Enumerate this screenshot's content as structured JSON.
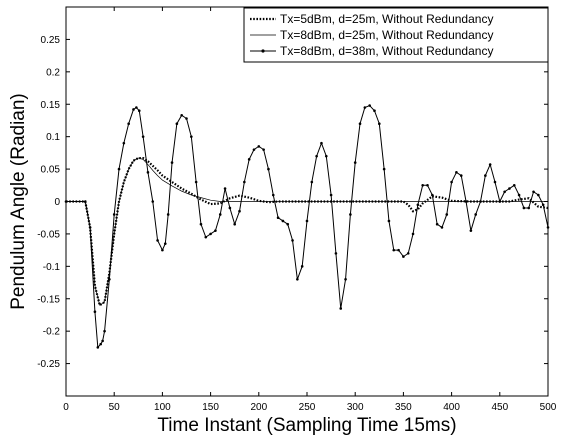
{
  "chart_data": {
    "type": "line",
    "title": "",
    "xlabel": "Time Instant (Sampling Time 15ms)",
    "ylabel": "Pendulum Angle (Radian)",
    "xlim": [
      0,
      500
    ],
    "ylim": [
      -0.3,
      0.3
    ],
    "xticks": [
      0,
      50,
      100,
      150,
      200,
      250,
      300,
      350,
      400,
      450,
      500
    ],
    "yticks": [
      -0.25,
      -0.2,
      -0.15,
      -0.1,
      -0.05,
      0,
      0.05,
      0.1,
      0.15,
      0.2,
      0.25
    ],
    "xtick_labels": [
      "0",
      "50",
      "100",
      "150",
      "200",
      "250",
      "300",
      "350",
      "400",
      "450",
      "500"
    ],
    "ytick_labels": [
      "-0.25",
      "-0.2",
      "-0.15",
      "-0.1",
      "-0.05",
      "0",
      "0.05",
      "0.1",
      "0.15",
      "0.2",
      "0.25"
    ],
    "grid": false,
    "legend_position": "top-right",
    "series": [
      {
        "name": "Tx=5dBm, d=25m, Without Redundancy",
        "style": "dotted-thick",
        "x": [
          0,
          20,
          25,
          30,
          35,
          40,
          45,
          50,
          55,
          60,
          65,
          70,
          75,
          80,
          85,
          90,
          95,
          100,
          110,
          120,
          130,
          140,
          150,
          160,
          170,
          180,
          190,
          200,
          210,
          220,
          230,
          240,
          250,
          260,
          270,
          280,
          290,
          300,
          310,
          320,
          330,
          340,
          350,
          355,
          360,
          365,
          370,
          380,
          390,
          400,
          420,
          440,
          460,
          470,
          480,
          490,
          500
        ],
        "y": [
          0,
          0,
          -0.04,
          -0.13,
          -0.16,
          -0.155,
          -0.11,
          -0.05,
          0.0,
          0.03,
          0.05,
          0.063,
          0.067,
          0.067,
          0.062,
          0.055,
          0.048,
          0.04,
          0.03,
          0.02,
          0.012,
          0.003,
          -0.004,
          -0.003,
          0.005,
          0.009,
          0.006,
          0.001,
          -0.001,
          0,
          0,
          0,
          0,
          0,
          0,
          0,
          0,
          0,
          0,
          0,
          0,
          0,
          0,
          -0.005,
          -0.015,
          -0.012,
          -0.003,
          0.008,
          0.006,
          0.001,
          0,
          0,
          0,
          0.003,
          0.005,
          -0.008,
          -0.01
        ]
      },
      {
        "name": "Tx=8dBm, d=25m, Without Redundancy",
        "style": "thin",
        "x": [
          0,
          20,
          25,
          30,
          35,
          40,
          45,
          50,
          55,
          60,
          65,
          70,
          75,
          80,
          85,
          90,
          95,
          100,
          110,
          120,
          130,
          140,
          150,
          160,
          170,
          180,
          190,
          200,
          220,
          240,
          260,
          280,
          300,
          320,
          340,
          360,
          380,
          400,
          420,
          440,
          460,
          480,
          500
        ],
        "y": [
          0,
          0,
          -0.04,
          -0.13,
          -0.16,
          -0.155,
          -0.11,
          -0.05,
          0.0,
          0.03,
          0.05,
          0.063,
          0.067,
          0.065,
          0.057,
          0.048,
          0.04,
          0.033,
          0.024,
          0.016,
          0.01,
          0.006,
          0.002,
          0.0,
          0,
          0,
          0,
          0,
          0,
          0,
          0,
          0,
          0,
          0,
          0,
          0,
          0,
          0,
          0,
          0,
          0,
          0,
          0
        ]
      },
      {
        "name": "Tx=8dBm, d=38m, Without Redundancy",
        "style": "line-with-dots",
        "x": [
          0,
          20,
          25,
          30,
          33,
          36,
          38,
          40,
          45,
          50,
          55,
          60,
          65,
          70,
          73,
          76,
          80,
          85,
          90,
          95,
          100,
          103,
          106,
          110,
          115,
          120,
          125,
          130,
          135,
          140,
          145,
          150,
          155,
          160,
          165,
          170,
          175,
          180,
          185,
          190,
          195,
          200,
          205,
          210,
          215,
          220,
          225,
          230,
          235,
          240,
          245,
          250,
          255,
          260,
          265,
          270,
          275,
          280,
          285,
          290,
          295,
          300,
          305,
          310,
          315,
          320,
          325,
          330,
          335,
          340,
          345,
          350,
          355,
          360,
          365,
          370,
          375,
          380,
          385,
          390,
          395,
          400,
          405,
          410,
          415,
          420,
          425,
          430,
          435,
          440,
          445,
          450,
          455,
          460,
          465,
          470,
          475,
          480,
          485,
          490,
          495,
          500
        ],
        "y": [
          0,
          0,
          -0.04,
          -0.17,
          -0.225,
          -0.22,
          -0.215,
          -0.2,
          -0.12,
          -0.02,
          0.05,
          0.09,
          0.12,
          0.142,
          0.145,
          0.14,
          0.1,
          0.045,
          0.0,
          -0.06,
          -0.075,
          -0.065,
          -0.02,
          0.06,
          0.12,
          0.133,
          0.128,
          0.1,
          0.03,
          -0.035,
          -0.055,
          -0.05,
          -0.045,
          -0.02,
          0.02,
          -0.01,
          -0.035,
          -0.015,
          0.03,
          0.065,
          0.08,
          0.085,
          0.08,
          0.05,
          0.01,
          -0.025,
          -0.03,
          -0.035,
          -0.06,
          -0.12,
          -0.1,
          -0.03,
          0.03,
          0.07,
          0.09,
          0.07,
          0.01,
          -0.08,
          -0.165,
          -0.12,
          -0.02,
          0.06,
          0.12,
          0.145,
          0.148,
          0.14,
          0.12,
          0.05,
          -0.03,
          -0.075,
          -0.075,
          -0.085,
          -0.08,
          -0.05,
          -0.005,
          0.025,
          0.025,
          0.01,
          -0.035,
          -0.04,
          -0.02,
          0.03,
          0.045,
          0.04,
          0.0,
          -0.045,
          -0.02,
          0.0,
          0.04,
          0.057,
          0.03,
          0.0,
          0.015,
          0.02,
          0.025,
          0.01,
          -0.01,
          -0.01,
          0.015,
          0.01,
          -0.005,
          -0.04
        ]
      }
    ]
  }
}
